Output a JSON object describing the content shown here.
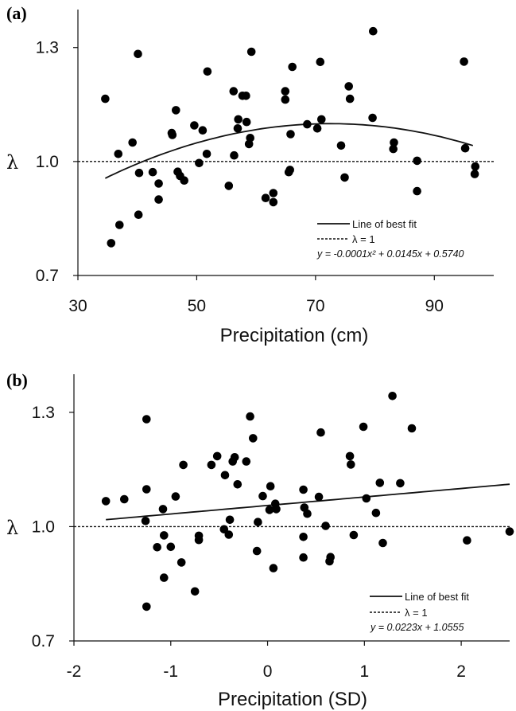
{
  "chart_data": [
    {
      "type": "scatter",
      "panel_label": "(a)",
      "xlabel": "Precipitation (cm)",
      "ylabel": "λ",
      "xlim": [
        30,
        100
      ],
      "ylim": [
        0.7,
        1.4
      ],
      "xticks": [
        "30",
        "50",
        "70",
        "90"
      ],
      "xtick_values": [
        30,
        50,
        70,
        90
      ],
      "yticks": [
        "0.7",
        "1.0",
        "1.3"
      ],
      "ytick_values": [
        0.7,
        1.0,
        1.3
      ],
      "points": [
        [
          34.6,
          1.165
        ],
        [
          35.6,
          0.785
        ],
        [
          36.8,
          1.02
        ],
        [
          37.0,
          0.833
        ],
        [
          39.2,
          1.05
        ],
        [
          40.1,
          1.283
        ],
        [
          40.2,
          0.86
        ],
        [
          40.3,
          0.97
        ],
        [
          42.6,
          0.972
        ],
        [
          43.6,
          0.942
        ],
        [
          43.6,
          0.9
        ],
        [
          45.8,
          1.075
        ],
        [
          45.9,
          1.07
        ],
        [
          46.5,
          1.135
        ],
        [
          46.8,
          0.973
        ],
        [
          47.2,
          0.962
        ],
        [
          47.9,
          0.95
        ],
        [
          49.6,
          1.095
        ],
        [
          50.4,
          0.996
        ],
        [
          51.0,
          1.082
        ],
        [
          51.7,
          1.02
        ],
        [
          51.8,
          1.237
        ],
        [
          55.4,
          0.936
        ],
        [
          56.2,
          1.185
        ],
        [
          56.3,
          1.016
        ],
        [
          56.9,
          1.087
        ],
        [
          57.0,
          1.111
        ],
        [
          57.7,
          1.173
        ],
        [
          58.3,
          1.173
        ],
        [
          58.4,
          1.104
        ],
        [
          58.8,
          1.046
        ],
        [
          59.0,
          1.062
        ],
        [
          59.2,
          1.289
        ],
        [
          61.6,
          0.904
        ],
        [
          62.9,
          0.917
        ],
        [
          62.9,
          0.893
        ],
        [
          64.9,
          1.185
        ],
        [
          64.9,
          1.163
        ],
        [
          65.5,
          0.972
        ],
        [
          65.7,
          0.978
        ],
        [
          65.8,
          1.072
        ],
        [
          66.1,
          1.249
        ],
        [
          68.6,
          1.098
        ],
        [
          70.3,
          1.087
        ],
        [
          70.8,
          1.262
        ],
        [
          71.0,
          1.111
        ],
        [
          74.3,
          1.042
        ],
        [
          74.9,
          0.958
        ],
        [
          75.6,
          1.198
        ],
        [
          75.8,
          1.165
        ],
        [
          79.6,
          1.115
        ],
        [
          79.7,
          1.343
        ],
        [
          83.1,
          1.033
        ],
        [
          83.2,
          1.05
        ],
        [
          87.1,
          0.922
        ],
        [
          87.1,
          1.002
        ],
        [
          95.0,
          1.263
        ],
        [
          95.2,
          1.035
        ],
        [
          96.8,
          0.967
        ],
        [
          96.9,
          0.987
        ]
      ],
      "fit": {
        "a": -0.0001,
        "b": 0.0145,
        "c": 0.574,
        "x_range": [
          34.6,
          96.5
        ]
      },
      "reference_line": 1.0,
      "legend": {
        "fit_label": "Line of best fit",
        "ref_label": "λ = 1",
        "equation_label": "y = -0.0001x² + 0.0145x + 0.5740"
      }
    },
    {
      "type": "scatter",
      "panel_label": "(b)",
      "xlabel": "Precipitation (SD)",
      "ylabel": "λ",
      "xlim": [
        -2,
        2.5
      ],
      "ylim": [
        0.7,
        1.4
      ],
      "xticks": [
        "-2",
        "-1",
        "0",
        "1",
        "2"
      ],
      "xtick_values": [
        -2,
        -1,
        0,
        1,
        2
      ],
      "yticks": [
        "0.7",
        "1.0",
        "1.3"
      ],
      "ytick_values": [
        0.7,
        1.0,
        1.3
      ],
      "points": [
        [
          -1.67,
          1.067
        ],
        [
          -1.48,
          1.072
        ],
        [
          -1.26,
          1.015
        ],
        [
          -1.25,
          1.282
        ],
        [
          -1.25,
          1.098
        ],
        [
          -1.25,
          0.79
        ],
        [
          -1.14,
          0.946
        ],
        [
          -1.08,
          1.046
        ],
        [
          -1.07,
          0.977
        ],
        [
          -1.07,
          0.866
        ],
        [
          -1.0,
          0.947
        ],
        [
          -0.95,
          1.079
        ],
        [
          -0.89,
          0.906
        ],
        [
          -0.87,
          1.162
        ],
        [
          -0.75,
          0.83
        ],
        [
          -0.71,
          0.965
        ],
        [
          -0.71,
          0.976
        ],
        [
          -0.58,
          1.162
        ],
        [
          -0.52,
          1.185
        ],
        [
          -0.45,
          0.993
        ],
        [
          -0.44,
          1.135
        ],
        [
          -0.4,
          0.979
        ],
        [
          -0.39,
          1.018
        ],
        [
          -0.36,
          1.171
        ],
        [
          -0.34,
          1.182
        ],
        [
          -0.31,
          1.111
        ],
        [
          -0.22,
          1.171
        ],
        [
          -0.18,
          1.289
        ],
        [
          -0.15,
          1.232
        ],
        [
          -0.11,
          0.936
        ],
        [
          -0.1,
          1.012
        ],
        [
          -0.05,
          1.08
        ],
        [
          0.02,
          1.044
        ],
        [
          0.03,
          1.106
        ],
        [
          0.06,
          0.891
        ],
        [
          0.08,
          1.06
        ],
        [
          0.09,
          1.046
        ],
        [
          0.37,
          1.097
        ],
        [
          0.37,
          0.919
        ],
        [
          0.37,
          0.973
        ],
        [
          0.38,
          1.05
        ],
        [
          0.41,
          1.034
        ],
        [
          0.53,
          1.078
        ],
        [
          0.55,
          1.247
        ],
        [
          0.6,
          1.002
        ],
        [
          0.64,
          0.909
        ],
        [
          0.65,
          0.92
        ],
        [
          0.85,
          1.185
        ],
        [
          0.86,
          1.163
        ],
        [
          0.89,
          0.978
        ],
        [
          0.99,
          1.262
        ],
        [
          1.02,
          1.074
        ],
        [
          1.12,
          1.036
        ],
        [
          1.16,
          1.115
        ],
        [
          1.19,
          0.957
        ],
        [
          1.29,
          1.343
        ],
        [
          1.37,
          1.114
        ],
        [
          1.49,
          1.258
        ],
        [
          2.06,
          0.964
        ],
        [
          2.5,
          0.987
        ]
      ],
      "fit": {
        "a": 0.0,
        "b": 0.0223,
        "c": 1.0555,
        "x_range": [
          -1.67,
          2.5
        ]
      },
      "reference_line": 1.0,
      "legend": {
        "fit_label": "Line of best fit",
        "ref_label": "λ = 1",
        "equation_label": "y = 0.0223x + 1.0555"
      }
    }
  ]
}
